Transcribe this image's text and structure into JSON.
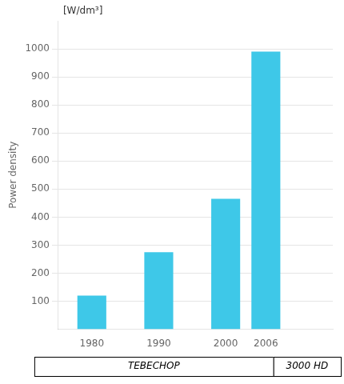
{
  "chart_data": {
    "type": "bar",
    "x": [
      1980,
      1990,
      2000,
      2006
    ],
    "values": [
      120,
      275,
      465,
      990
    ],
    "color": "#3ec8e8",
    "ylabel": "Power density",
    "xlim": [
      1975,
      2016
    ],
    "xticks": [
      1980,
      1990,
      2000,
      2006
    ],
    "ylim": [
      0,
      1100
    ],
    "yticks": [
      100,
      200,
      300,
      400,
      500,
      600,
      700,
      800,
      900,
      1000
    ],
    "grid": "y",
    "annotations": [
      "[W/dm³]",
      "TEBECHOP",
      "3000 HD"
    ]
  }
}
